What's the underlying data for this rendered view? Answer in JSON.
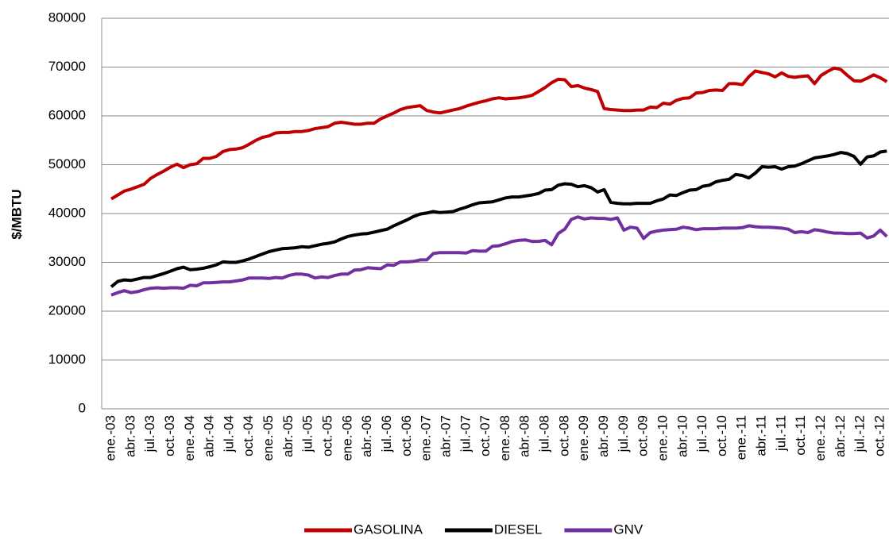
{
  "chart_data": {
    "type": "line",
    "y_label": "$/MBTU",
    "categories": [
      "ene.-03",
      null,
      null,
      "abr.-03",
      null,
      null,
      "jul.-03",
      null,
      null,
      "oct.-03",
      null,
      null,
      "ene.-04",
      null,
      null,
      "abr.-04",
      null,
      null,
      "jul.-04",
      null,
      null,
      "oct.-04",
      null,
      null,
      "ene.-05",
      null,
      null,
      "abr.-05",
      null,
      null,
      "jul.-05",
      null,
      null,
      "oct.-05",
      null,
      null,
      "ene.-06",
      null,
      null,
      "abr.-06",
      null,
      null,
      "jul.-06",
      null,
      null,
      "oct.-06",
      null,
      null,
      "ene.-07",
      null,
      null,
      "abr.-07",
      null,
      null,
      "jul.-07",
      null,
      null,
      "oct.-07",
      null,
      null,
      "ene.-08",
      null,
      null,
      "abr.-08",
      null,
      null,
      "jul.-08",
      null,
      null,
      "oct.-08",
      null,
      null,
      "ene.-09",
      null,
      null,
      "abr.-09",
      null,
      null,
      "jul.-09",
      null,
      null,
      "oct.-09",
      null,
      null,
      "ene.-10",
      null,
      null,
      "abr.-10",
      null,
      null,
      "jul.-10",
      null,
      null,
      "oct.-10",
      null,
      null,
      "ene.-11",
      null,
      null,
      "abr.-11",
      null,
      null,
      "jul.-11",
      null,
      null,
      "oct.-11",
      null,
      null,
      "ene.-12",
      null,
      null,
      "abr.-12",
      null,
      null,
      "jul.-12",
      null,
      null,
      "oct.-12",
      null
    ],
    "series": [
      {
        "name": "GASOLINA",
        "color": "#c00000",
        "values": [
          43000,
          43800,
          44600,
          45000,
          45500,
          46000,
          47200,
          48000,
          48700,
          49500,
          50100,
          49400,
          50000,
          50200,
          51300,
          51300,
          51700,
          52700,
          53100,
          53200,
          53500,
          54200,
          55000,
          55600,
          55900,
          56500,
          56600,
          56600,
          56800,
          56800,
          57000,
          57400,
          57600,
          57800,
          58500,
          58700,
          58500,
          58300,
          58300,
          58500,
          58500,
          59400,
          60000,
          60600,
          61300,
          61700,
          61900,
          62100,
          61100,
          60800,
          60600,
          60900,
          61200,
          61500,
          62000,
          62400,
          62800,
          63100,
          63500,
          63700,
          63500,
          63600,
          63700,
          63900,
          64200,
          65000,
          65800,
          66800,
          67500,
          67400,
          66000,
          66200,
          65700,
          65400,
          65000,
          61500,
          61300,
          61200,
          61100,
          61100,
          61200,
          61200,
          61800,
          61700,
          62600,
          62400,
          63200,
          63600,
          63700,
          64700,
          64800,
          65200,
          65300,
          65200,
          66600,
          66600,
          66400,
          68000,
          69200,
          68900,
          68600,
          68000,
          68800,
          68100,
          67900,
          68100,
          68200,
          66600,
          68300,
          69100,
          69800,
          69500,
          68300,
          67200,
          67100,
          67700,
          68400,
          67800,
          67000
        ]
      },
      {
        "name": "DIESEL",
        "color": "#000000",
        "values": [
          25000,
          26100,
          26400,
          26300,
          26600,
          26900,
          26900,
          27300,
          27700,
          28200,
          28700,
          29000,
          28500,
          28600,
          28800,
          29100,
          29500,
          30100,
          30000,
          30000,
          30300,
          30700,
          31200,
          31700,
          32200,
          32500,
          32800,
          32900,
          33000,
          33200,
          33100,
          33400,
          33700,
          33900,
          34200,
          34800,
          35300,
          35600,
          35800,
          35900,
          36200,
          36500,
          36800,
          37500,
          38100,
          38700,
          39400,
          39900,
          40100,
          40400,
          40200,
          40300,
          40400,
          40900,
          41300,
          41800,
          42200,
          42300,
          42400,
          42800,
          43200,
          43400,
          43400,
          43600,
          43800,
          44100,
          44800,
          44900,
          45800,
          46100,
          46000,
          45500,
          45700,
          45300,
          44400,
          44900,
          42300,
          42100,
          42000,
          42000,
          42100,
          42100,
          42100,
          42600,
          43000,
          43800,
          43700,
          44300,
          44800,
          44900,
          45600,
          45800,
          46500,
          46800,
          47000,
          48000,
          47800,
          47300,
          48300,
          49600,
          49500,
          49600,
          49100,
          49600,
          49700,
          50200,
          50800,
          51400,
          51600,
          51800,
          52100,
          52500,
          52300,
          51700,
          50100,
          51600,
          51800,
          52600,
          52800
        ]
      },
      {
        "name": "GNV",
        "color": "#7030a0",
        "values": [
          23300,
          23800,
          24200,
          23800,
          24000,
          24400,
          24700,
          24800,
          24700,
          24800,
          24800,
          24700,
          25300,
          25200,
          25800,
          25800,
          25900,
          26000,
          26000,
          26200,
          26400,
          26800,
          26800,
          26800,
          26700,
          26900,
          26800,
          27300,
          27600,
          27600,
          27400,
          26800,
          27000,
          26900,
          27300,
          27600,
          27600,
          28400,
          28500,
          28900,
          28800,
          28700,
          29500,
          29400,
          30100,
          30100,
          30200,
          30500,
          30500,
          31800,
          32000,
          32000,
          32000,
          32000,
          31900,
          32400,
          32300,
          32300,
          33300,
          33400,
          33800,
          34300,
          34500,
          34600,
          34300,
          34300,
          34500,
          33600,
          35900,
          36800,
          38800,
          39300,
          38900,
          39100,
          39000,
          39000,
          38800,
          39100,
          36600,
          37200,
          37000,
          34900,
          36100,
          36400,
          36600,
          36700,
          36800,
          37200,
          37000,
          36700,
          36900,
          36900,
          36900,
          37000,
          37000,
          37000,
          37100,
          37500,
          37300,
          37200,
          37200,
          37100,
          37000,
          36800,
          36100,
          36300,
          36100,
          36700,
          36500,
          36200,
          36000,
          36000,
          35900,
          35900,
          36000,
          35000,
          35400,
          36600,
          35300
        ]
      }
    ],
    "ylim": [
      0,
      80000
    ],
    "yticks": [
      0,
      10000,
      20000,
      30000,
      40000,
      50000,
      60000,
      70000,
      80000
    ],
    "grid": true,
    "legend": "bottom"
  }
}
